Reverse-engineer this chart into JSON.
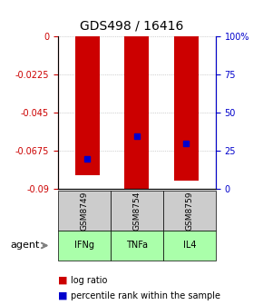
{
  "title": "GDS498 / 16416",
  "samples": [
    "GSM8749",
    "GSM8754",
    "GSM8759"
  ],
  "agents": [
    "IFNg",
    "TNFa",
    "IL4"
  ],
  "log_ratios": [
    -0.082,
    -0.09,
    -0.085
  ],
  "percentile_ranks": [
    20,
    35,
    30
  ],
  "ylim": [
    -0.09,
    0
  ],
  "yticks_left": [
    0,
    -0.0225,
    -0.045,
    -0.0675,
    -0.09
  ],
  "ytick_labels_left": [
    "0",
    "-0.0225",
    "-0.045",
    "-0.0675",
    "-0.09"
  ],
  "yticks_right": [
    0,
    25,
    50,
    75,
    100
  ],
  "ytick_labels_right": [
    "0",
    "25",
    "50",
    "75",
    "100%"
  ],
  "bar_color": "#cc0000",
  "percentile_color": "#0000cc",
  "agent_colors": [
    "#aaffaa",
    "#aaffaa",
    "#aaffaa"
  ],
  "sample_bg_color": "#cccccc",
  "left_axis_color": "#cc0000",
  "right_axis_color": "#0000cc",
  "grid_color": "#aaaaaa",
  "agent_label": "agent"
}
